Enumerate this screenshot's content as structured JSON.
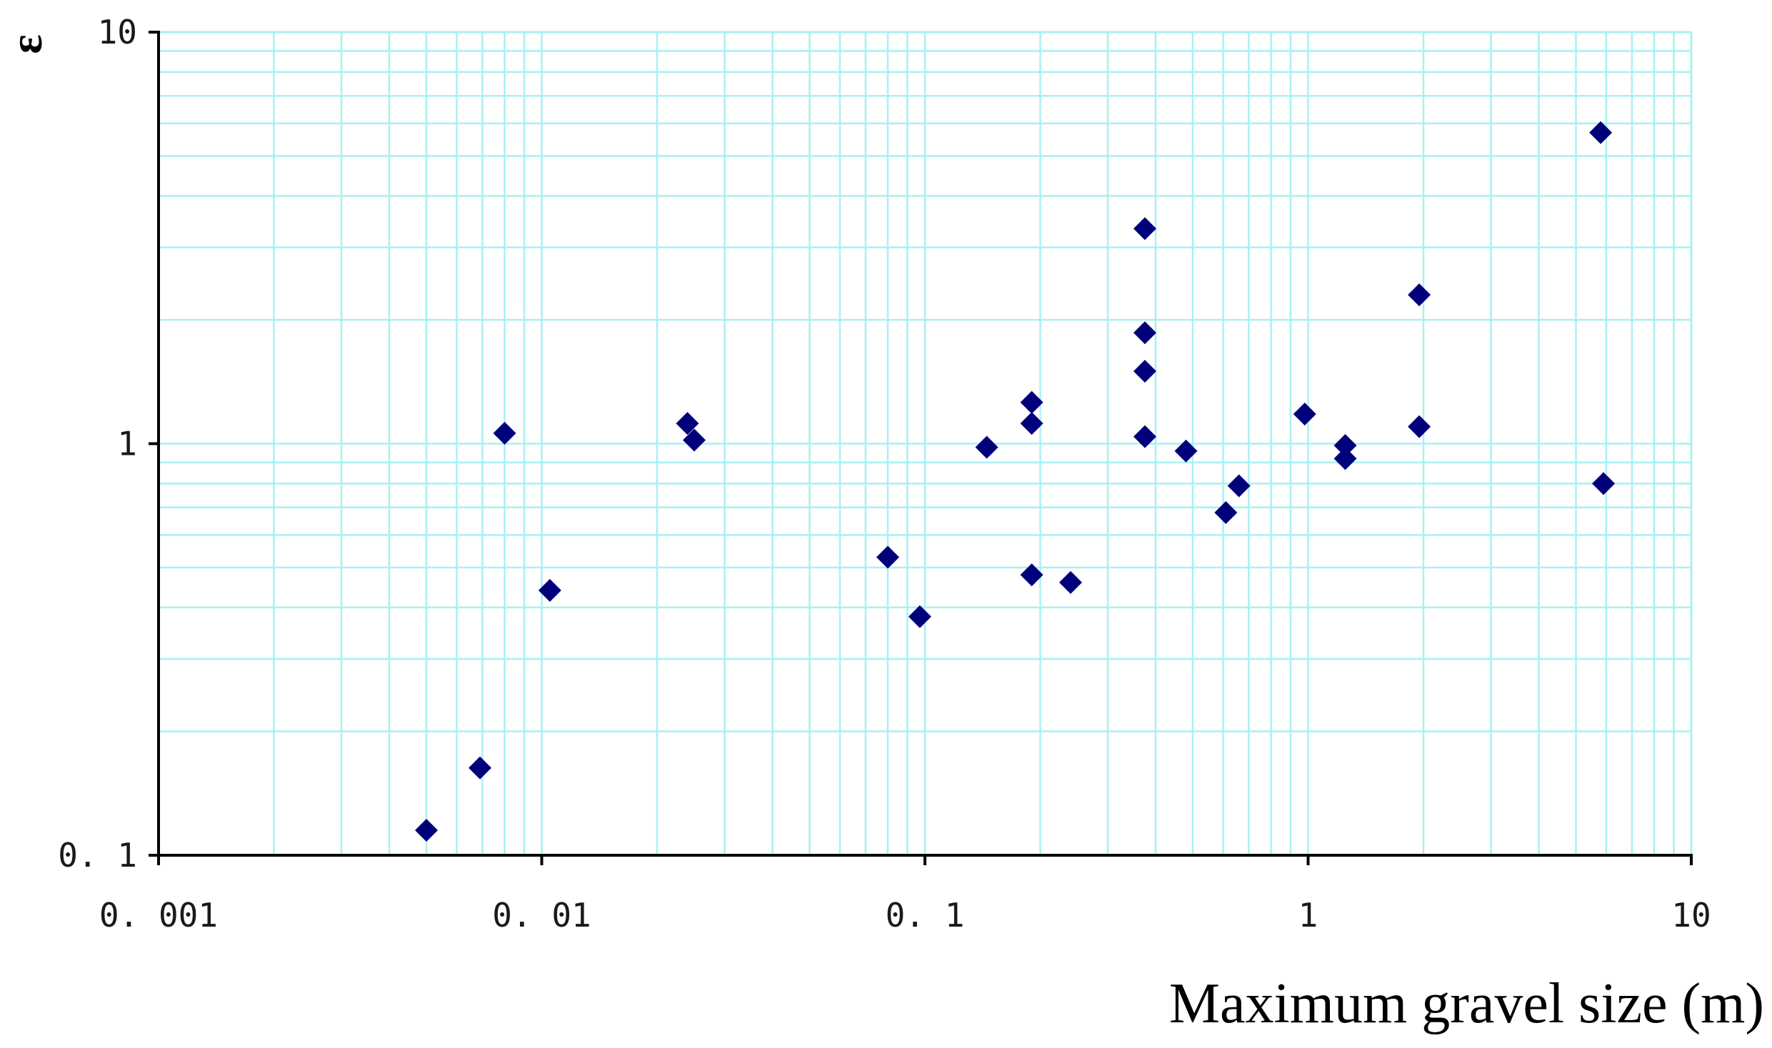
{
  "chart_data": {
    "type": "scatter",
    "title": "",
    "xlabel": "Maximum gravel size (m)",
    "ylabel": "ε",
    "x_scale": "log",
    "y_scale": "log",
    "xlim": [
      0.001,
      10
    ],
    "ylim": [
      0.1,
      10
    ],
    "x_ticks": [
      {
        "value": 0.001,
        "label": "0. 001"
      },
      {
        "value": 0.01,
        "label": "0. 01"
      },
      {
        "value": 0.1,
        "label": "0. 1"
      },
      {
        "value": 1,
        "label": "1"
      },
      {
        "value": 10,
        "label": "10"
      }
    ],
    "y_ticks": [
      {
        "value": 0.1,
        "label": "0. 1"
      },
      {
        "value": 1,
        "label": "1"
      },
      {
        "value": 10,
        "label": "10"
      }
    ],
    "grid": true,
    "legend": "none",
    "colors": {
      "grid": "#a8f0f4",
      "marker": "#00007a",
      "axis": "#000000"
    },
    "marker": "diamond",
    "points": [
      {
        "x": 0.005,
        "y": 0.115
      },
      {
        "x": 0.0069,
        "y": 0.163
      },
      {
        "x": 0.008,
        "y": 1.06
      },
      {
        "x": 0.0105,
        "y": 0.44
      },
      {
        "x": 0.024,
        "y": 1.12
      },
      {
        "x": 0.025,
        "y": 1.02
      },
      {
        "x": 0.08,
        "y": 0.53
      },
      {
        "x": 0.097,
        "y": 0.38
      },
      {
        "x": 0.145,
        "y": 0.98
      },
      {
        "x": 0.19,
        "y": 1.26
      },
      {
        "x": 0.19,
        "y": 1.12
      },
      {
        "x": 0.19,
        "y": 0.48
      },
      {
        "x": 0.24,
        "y": 0.46
      },
      {
        "x": 0.375,
        "y": 3.33
      },
      {
        "x": 0.375,
        "y": 1.86
      },
      {
        "x": 0.375,
        "y": 1.5
      },
      {
        "x": 0.375,
        "y": 1.04
      },
      {
        "x": 0.48,
        "y": 0.96
      },
      {
        "x": 0.61,
        "y": 0.68
      },
      {
        "x": 0.66,
        "y": 0.79
      },
      {
        "x": 0.98,
        "y": 1.18
      },
      {
        "x": 1.25,
        "y": 0.99
      },
      {
        "x": 1.25,
        "y": 0.92
      },
      {
        "x": 1.95,
        "y": 2.3
      },
      {
        "x": 1.95,
        "y": 1.1
      },
      {
        "x": 5.8,
        "y": 5.7
      },
      {
        "x": 5.9,
        "y": 0.8
      }
    ]
  }
}
